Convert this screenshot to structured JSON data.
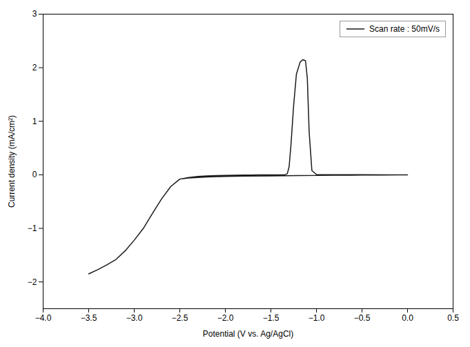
{
  "chart_data": {
    "type": "line",
    "xlabel": "Potential (V vs. Ag/AgCl)",
    "ylabel": "Current density (mA/cm²)",
    "xlim": [
      -4.0,
      0.5
    ],
    "ylim": [
      -2.5,
      3.0
    ],
    "xticks": [
      {
        "value": -4.0,
        "label": "−4.0"
      },
      {
        "value": -3.5,
        "label": "−3.5"
      },
      {
        "value": -3.0,
        "label": "−3.0"
      },
      {
        "value": -2.5,
        "label": "−2.5"
      },
      {
        "value": -2.0,
        "label": "−2.0"
      },
      {
        "value": -1.5,
        "label": "−1.5"
      },
      {
        "value": -1.0,
        "label": "−1.0"
      },
      {
        "value": -0.5,
        "label": "−0.5"
      },
      {
        "value": 0.0,
        "label": "0.0"
      },
      {
        "value": 0.5,
        "label": "0.5"
      }
    ],
    "yticks": [
      -2,
      -1,
      0,
      1,
      2,
      3
    ],
    "legend": "upper right",
    "x": [
      0.0,
      -0.1,
      -0.3,
      -0.5,
      -0.8,
      -1.0,
      -1.2,
      -1.5,
      -1.8,
      -2.0,
      -2.2,
      -2.4,
      -2.5,
      -2.6,
      -2.7,
      -2.8,
      -2.9,
      -3.0,
      -3.1,
      -3.2,
      -3.3,
      -3.4,
      -3.5,
      -3.5,
      -3.4,
      -3.3,
      -3.2,
      -3.1,
      -3.0,
      -2.9,
      -2.8,
      -2.7,
      -2.6,
      -2.5,
      -2.4,
      -2.3,
      -2.2,
      -2.1,
      -2.0,
      -1.9,
      -1.8,
      -1.7,
      -1.65,
      -1.6,
      -1.55,
      -1.5,
      -1.45,
      -1.4,
      -1.35,
      -1.32,
      -1.3,
      -1.28,
      -1.25,
      -1.22,
      -1.18,
      -1.15,
      -1.12,
      -1.1,
      -1.08,
      -1.05,
      -1.0,
      -0.8,
      -0.5,
      -0.2,
      0.0
    ],
    "series": [
      {
        "name": "Scan rate : 50mV/s",
        "color": "#1a1a1a",
        "values": [
          0.0,
          -0.002,
          -0.004,
          -0.006,
          -0.009,
          -0.012,
          -0.015,
          -0.02,
          -0.025,
          -0.03,
          -0.04,
          -0.06,
          -0.08,
          -0.22,
          -0.45,
          -0.72,
          -1.0,
          -1.22,
          -1.42,
          -1.58,
          -1.68,
          -1.77,
          -1.85,
          -1.85,
          -1.77,
          -1.68,
          -1.58,
          -1.42,
          -1.22,
          -1.0,
          -0.72,
          -0.45,
          -0.22,
          -0.08,
          -0.05,
          -0.03,
          -0.02,
          -0.015,
          -0.01,
          -0.008,
          -0.005,
          -0.003,
          -0.002,
          -0.001,
          0.0,
          0.0,
          0.0,
          0.0,
          0.0,
          0.02,
          0.15,
          0.55,
          1.3,
          1.88,
          2.1,
          2.15,
          2.13,
          1.8,
          0.8,
          0.08,
          0.005,
          0.002,
          0.001,
          0.0,
          0.0
        ]
      }
    ]
  }
}
